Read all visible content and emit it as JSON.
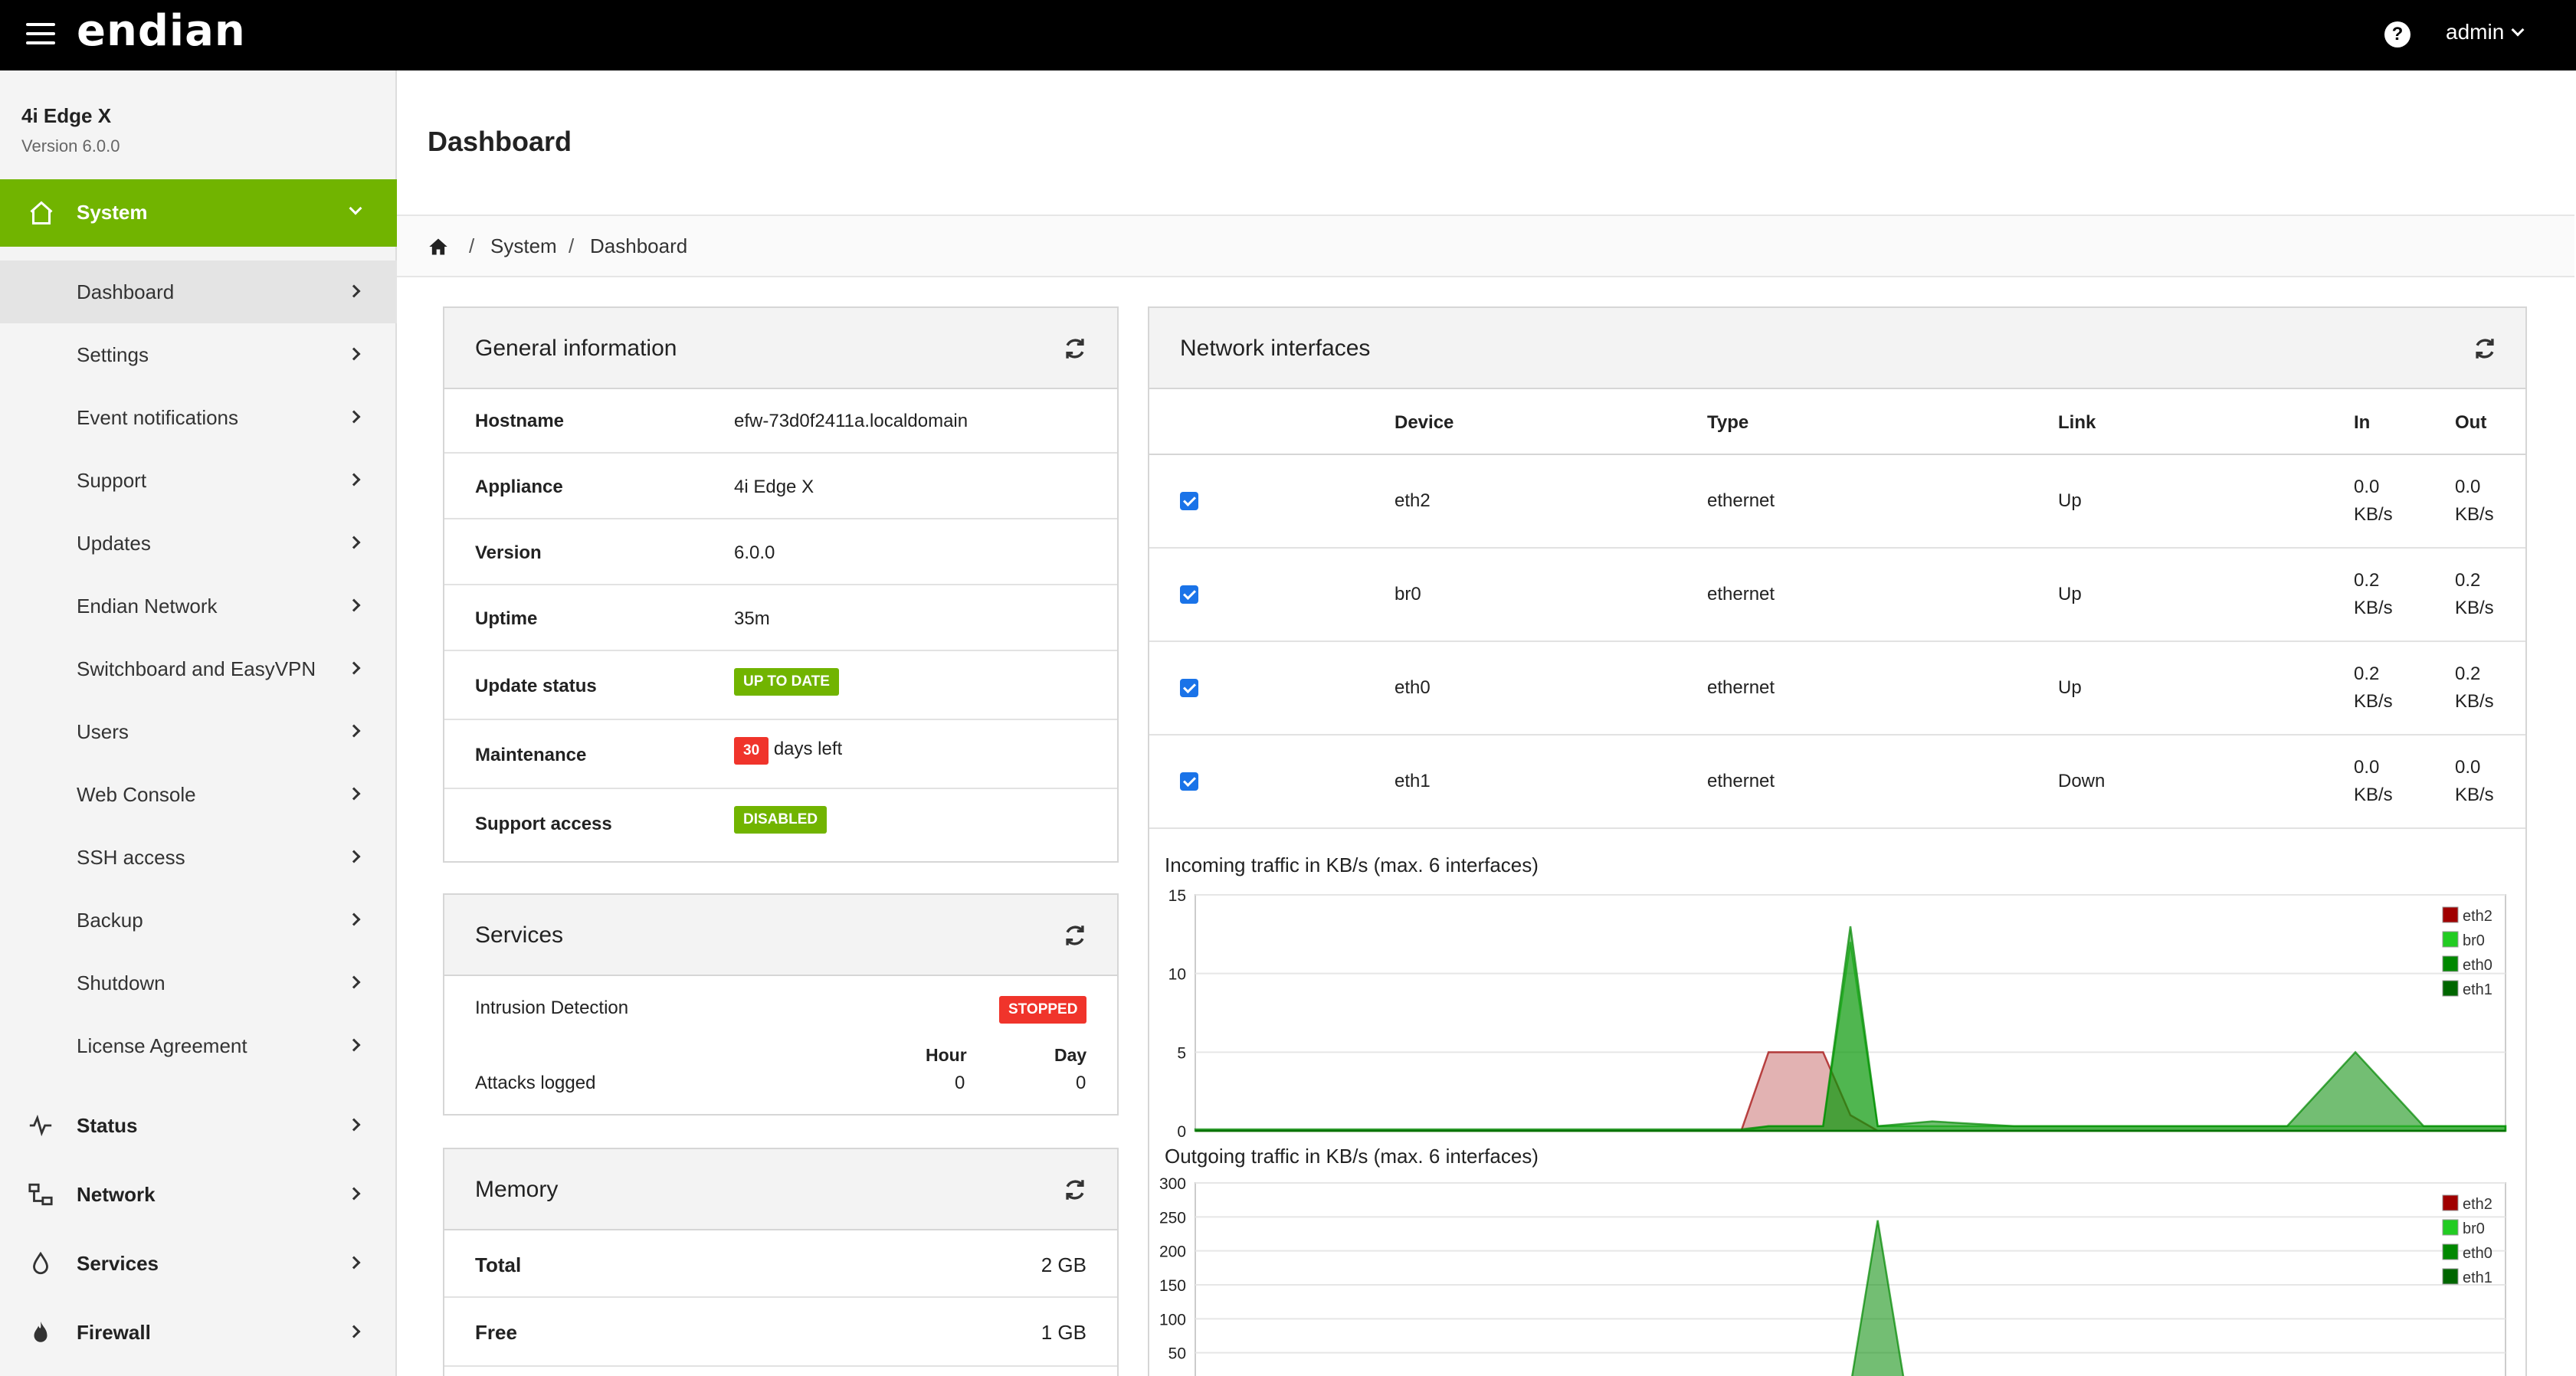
{
  "topbar": {
    "logo": "endian",
    "help": "?",
    "user": "admin"
  },
  "sidebar": {
    "title": "4i Edge X",
    "version": "Version 6.0.0",
    "section": "System",
    "sub_items": [
      {
        "label": "Dashboard",
        "active": true
      },
      {
        "label": "Settings"
      },
      {
        "label": "Event notifications"
      },
      {
        "label": "Support"
      },
      {
        "label": "Updates"
      },
      {
        "label": "Endian Network"
      },
      {
        "label": "Switchboard and EasyVPN"
      },
      {
        "label": "Users"
      },
      {
        "label": "Web Console"
      },
      {
        "label": "SSH access"
      },
      {
        "label": "Backup"
      },
      {
        "label": "Shutdown"
      },
      {
        "label": "License Agreement"
      }
    ],
    "main_items": [
      {
        "label": "Status",
        "icon": "pulse-icon"
      },
      {
        "label": "Network",
        "icon": "network-icon"
      },
      {
        "label": "Services",
        "icon": "drop-icon"
      },
      {
        "label": "Firewall",
        "icon": "flame-icon"
      }
    ]
  },
  "page": {
    "title": "Dashboard"
  },
  "breadcrumb": {
    "sep": "/",
    "items": [
      "System",
      "Dashboard"
    ]
  },
  "general": {
    "title": "General information",
    "rows": [
      {
        "key": "Hostname",
        "value": "efw-73d0f2411a.localdomain"
      },
      {
        "key": "Appliance",
        "value": "4i Edge X"
      },
      {
        "key": "Version",
        "value": "6.0.0"
      },
      {
        "key": "Uptime",
        "value": "35m"
      },
      {
        "key": "Update status",
        "badge": "UP TO DATE"
      },
      {
        "key": "Maintenance",
        "badge": "30",
        "suffix": "days left"
      },
      {
        "key": "Support access",
        "badge": "DISABLED"
      }
    ]
  },
  "services": {
    "title": "Services",
    "name": "Intrusion Detection",
    "status": "STOPPED",
    "col_hour": "Hour",
    "col_day": "Day",
    "row_label": "Attacks logged",
    "hour": "0",
    "day": "0"
  },
  "memory": {
    "title": "Memory",
    "rows": [
      {
        "key": "Total",
        "value": "2 GB"
      },
      {
        "key": "Free",
        "value": "1 GB"
      }
    ]
  },
  "network": {
    "title": "Network interfaces",
    "headers": {
      "device": "Device",
      "type": "Type",
      "link": "Link",
      "in": "In",
      "out": "Out"
    },
    "rows": [
      {
        "device": "eth2",
        "type": "ethernet",
        "link": "Up",
        "in_val": "0.0",
        "out_val": "0.0",
        "unit": "KB/s",
        "checked": true
      },
      {
        "device": "br0",
        "type": "ethernet",
        "link": "Up",
        "in_val": "0.2",
        "out_val": "0.2",
        "unit": "KB/s",
        "checked": true
      },
      {
        "device": "eth0",
        "type": "ethernet",
        "link": "Up",
        "in_val": "0.2",
        "out_val": "0.2",
        "unit": "KB/s",
        "checked": true
      },
      {
        "device": "eth1",
        "type": "ethernet",
        "link": "Down",
        "in_val": "0.0",
        "out_val": "0.0",
        "unit": "KB/s",
        "checked": true
      }
    ]
  },
  "colors": {
    "accent": "#71b400",
    "danger": "#f0342b",
    "eth2": "#a00000",
    "br0": "#22cc22",
    "eth0": "#008800",
    "eth1": "#006600"
  },
  "chart_data": [
    {
      "type": "area",
      "title": "Incoming traffic in KB/s (max. 6 interfaces)",
      "ylim": [
        0,
        15
      ],
      "yticks": [
        0,
        5,
        10,
        15
      ],
      "grid": true,
      "legend_position": "top-right",
      "x": [
        0,
        6,
        12,
        18,
        24,
        30,
        36,
        40,
        42,
        44,
        46,
        48,
        50,
        54,
        60,
        64,
        66,
        68,
        70,
        72,
        75,
        80,
        85,
        90,
        96
      ],
      "series": [
        {
          "name": "eth2",
          "values": [
            0,
            0,
            0,
            0,
            0,
            0,
            0,
            0,
            5,
            5,
            5,
            1,
            0,
            0,
            0,
            0,
            0,
            0,
            0,
            0,
            0,
            0,
            0,
            0,
            0
          ]
        },
        {
          "name": "br0",
          "values": [
            0,
            0,
            0,
            0,
            0,
            0,
            0,
            0,
            0.3,
            0.3,
            0.3,
            12,
            0.3,
            0.3,
            0.3,
            0.3,
            0.3,
            0.3,
            0.3,
            0.3,
            0.3,
            0.3,
            0.3,
            0.3,
            0.3
          ]
        },
        {
          "name": "eth0",
          "values": [
            0.1,
            0.1,
            0.1,
            0.1,
            0.1,
            0.1,
            0.1,
            0.1,
            0.3,
            0.3,
            0.3,
            13,
            0.3,
            0.6,
            0.3,
            0.3,
            0.3,
            0.3,
            0.3,
            0.3,
            0.3,
            0.3,
            5,
            0.3,
            0.3
          ]
        },
        {
          "name": "eth1",
          "values": [
            0,
            0,
            0,
            0,
            0,
            0,
            0,
            0,
            0,
            0,
            0,
            0,
            0,
            0,
            0,
            0,
            0,
            0,
            0,
            0,
            0,
            0,
            0,
            0,
            0
          ]
        }
      ]
    },
    {
      "type": "area",
      "title": "Outgoing traffic in KB/s (max. 6 interfaces)",
      "ylim": [
        0,
        300
      ],
      "yticks": [
        50,
        100,
        150,
        200,
        250,
        300
      ],
      "grid": true,
      "legend_position": "top-right",
      "x": [
        0,
        6,
        12,
        18,
        24,
        30,
        36,
        40,
        44,
        46,
        48,
        50,
        52,
        54,
        60,
        96
      ],
      "series": [
        {
          "name": "eth2",
          "values": [
            0,
            0,
            0,
            0,
            0,
            0,
            0,
            0,
            0,
            0,
            0,
            0,
            0,
            0,
            0,
            0
          ]
        },
        {
          "name": "br0",
          "values": [
            0,
            0,
            0,
            0,
            0,
            0,
            0,
            0,
            0,
            0,
            0,
            0,
            0,
            0,
            0,
            0
          ]
        },
        {
          "name": "eth0",
          "values": [
            0,
            0,
            0,
            0,
            0,
            0,
            0,
            0,
            0,
            0,
            0,
            245,
            0,
            0,
            0,
            0
          ]
        },
        {
          "name": "eth1",
          "values": [
            0,
            0,
            0,
            0,
            0,
            0,
            0,
            0,
            0,
            0,
            0,
            0,
            0,
            0,
            0,
            0
          ]
        }
      ]
    }
  ]
}
